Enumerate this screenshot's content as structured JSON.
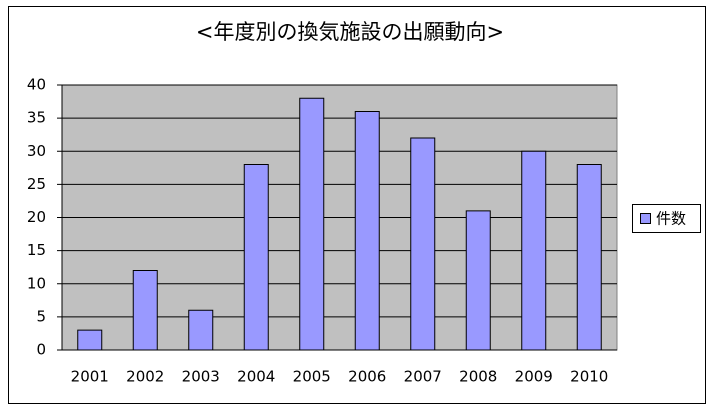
{
  "chart_data": {
    "type": "bar",
    "title": "<年度別の換気施設の出願動向>",
    "categories": [
      "2001",
      "2002",
      "2003",
      "2004",
      "2005",
      "2006",
      "2007",
      "2008",
      "2009",
      "2010"
    ],
    "series": [
      {
        "name": "件数",
        "color": "#9999ff",
        "values": [
          3,
          12,
          6,
          28,
          38,
          36,
          32,
          21,
          30,
          28
        ]
      }
    ],
    "ylim": [
      0,
      40
    ],
    "yticks": [
      0,
      5,
      10,
      15,
      20,
      25,
      30,
      35,
      40
    ],
    "grid": true,
    "legend": "right"
  }
}
